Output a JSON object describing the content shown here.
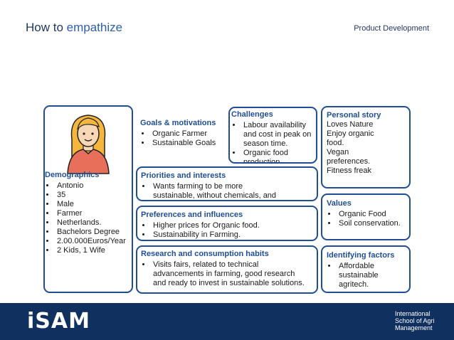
{
  "header": {
    "title_part1": "How to",
    "title_part2": "empathize",
    "tag": "Product Development"
  },
  "demographics": {
    "heading": "Demographics",
    "items": [
      "Antonio",
      "35",
      "Male",
      "Farmer",
      "Netherlands.",
      "Bachelors Degree",
      "2.00.000Euros/Year",
      "2 Kids, 1 Wife"
    ]
  },
  "goals": {
    "heading": "Goals & motivations",
    "items": [
      "Organic Farmer",
      "Sustainable Goals"
    ]
  },
  "challenges": {
    "heading": "Challenges",
    "items": [
      "Labour availability and cost in peak on season time.",
      "Organic food production."
    ]
  },
  "personal_story": {
    "heading": "Personal story",
    "lines": [
      "Loves Nature",
      "Enjoy organic",
      "food.",
      "Vegan",
      "preferences.",
      "Fitness freak"
    ]
  },
  "priorities": {
    "heading": "Priorities and interests",
    "items": [
      "Wants farming to be more sustainable, without chemicals, and natural way."
    ]
  },
  "values": {
    "heading": "Values",
    "items": [
      "Organic Food",
      "Soil conservation."
    ]
  },
  "preferences": {
    "heading": "Preferences and influences",
    "items": [
      "Higher prices for Organic food.",
      "Sustainability in Farming."
    ]
  },
  "research": {
    "heading": "Research and consumption habits",
    "items": [
      "Visits fairs, related to technical advancements in farming, good research and ready to invest in sustainable solutions."
    ]
  },
  "identifying": {
    "heading": "Identifying factors",
    "items": [
      "Affordable sustainable agritech."
    ]
  },
  "footer": {
    "logo": "iSAM",
    "school_lines": [
      "International",
      "School of Agri",
      "Management"
    ]
  },
  "colors": {
    "accent": "#1f4e96",
    "footer": "#10305f",
    "hair": "#f4b63d",
    "shirt": "#e8705a"
  }
}
